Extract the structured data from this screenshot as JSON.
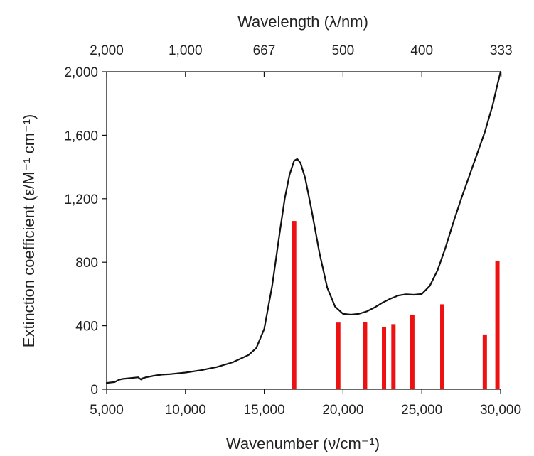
{
  "chart_data": {
    "type": "line",
    "xlabel": "Wavenumber (ν/cm⁻¹)",
    "ylabel": "Extinction coefficient (ε/M⁻¹ cm⁻¹)",
    "x2label": "Wavelength (λ/nm)",
    "xlim": [
      5000,
      30000
    ],
    "ylim": [
      0,
      2000
    ],
    "x_ticks": [
      {
        "value": 5000,
        "label": "5,000"
      },
      {
        "value": 10000,
        "label": "10,000"
      },
      {
        "value": 15000,
        "label": "15,000"
      },
      {
        "value": 20000,
        "label": "20,000"
      },
      {
        "value": 25000,
        "label": "25,000"
      },
      {
        "value": 30000,
        "label": "30,000"
      }
    ],
    "y_ticks": [
      {
        "value": 0,
        "label": "0"
      },
      {
        "value": 400,
        "label": "400"
      },
      {
        "value": 800,
        "label": "800"
      },
      {
        "value": 1200,
        "label": "1,200"
      },
      {
        "value": 1600,
        "label": "1,600"
      },
      {
        "value": 2000,
        "label": "2,000"
      }
    ],
    "x2_ticks": [
      {
        "value": 2000,
        "label": "2,000"
      },
      {
        "value": 1000,
        "label": "1,000"
      },
      {
        "value": 667,
        "label": "667"
      },
      {
        "value": 500,
        "label": "500"
      },
      {
        "value": 400,
        "label": "400"
      },
      {
        "value": 333,
        "label": "333"
      }
    ],
    "spectrum": {
      "color": "#111111",
      "x": [
        5000,
        5500,
        5800,
        6000,
        6500,
        7000,
        7200,
        7300,
        7500,
        8000,
        8500,
        9000,
        10000,
        11000,
        12000,
        13000,
        14000,
        14500,
        15000,
        15500,
        16000,
        16300,
        16600,
        16900,
        17100,
        17300,
        17600,
        18000,
        18500,
        19000,
        19500,
        20000,
        20500,
        21000,
        21500,
        22000,
        22500,
        23000,
        23500,
        24000,
        24500,
        25000,
        25500,
        26000,
        26500,
        27000,
        27500,
        28000,
        28500,
        29000,
        29500,
        29800,
        30000
      ],
      "y": [
        40,
        45,
        60,
        65,
        70,
        75,
        60,
        70,
        75,
        85,
        92,
        95,
        105,
        120,
        140,
        170,
        215,
        260,
        380,
        650,
        1000,
        1200,
        1350,
        1440,
        1450,
        1425,
        1330,
        1130,
        860,
        640,
        520,
        475,
        470,
        475,
        490,
        515,
        545,
        570,
        590,
        598,
        595,
        600,
        650,
        750,
        890,
        1050,
        1200,
        1340,
        1480,
        1620,
        1790,
        1920,
        2000
      ]
    },
    "transitions": {
      "color": "#ee1111",
      "x": [
        16900,
        19700,
        21400,
        22600,
        23200,
        24400,
        26300,
        29000,
        29800
      ],
      "y": [
        1060,
        420,
        425,
        390,
        410,
        470,
        535,
        345,
        810
      ]
    }
  }
}
